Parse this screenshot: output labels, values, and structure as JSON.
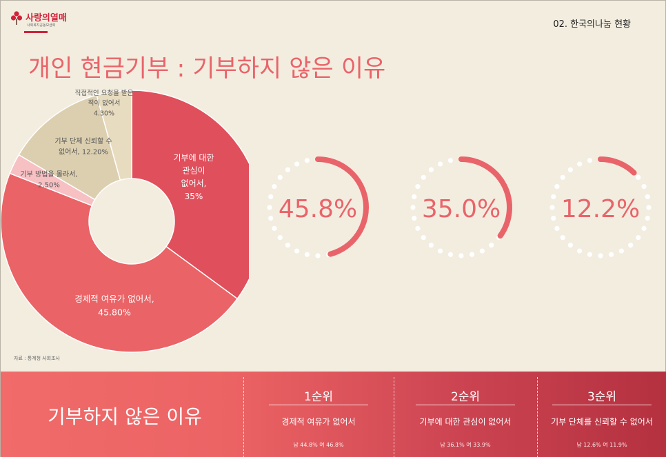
{
  "header": {
    "logo_text": "사랑의열매",
    "logo_sub": "사회복지공동모금회",
    "section_label": "02. 한국의나눔 현황"
  },
  "title": "개인 현금기부 : 기부하지 않은 이유",
  "source": "자료 : 통계청 사회조사",
  "colors": {
    "background": "#f3ede0",
    "accent": "#e9646a",
    "slice_interest": "#e04f5c",
    "slice_economic": "#ea6366",
    "slice_method": "#f7c0c3",
    "slice_trust": "#dccfb0",
    "slice_request": "#e8dcc0"
  },
  "chart_data": [
    {
      "type": "pie",
      "donut": true,
      "title": "",
      "slices": [
        {
          "label_lines": [
            "기부에 대한",
            "관심이",
            "없어서,",
            "35%"
          ],
          "value": 35.0,
          "color": "#e04f5c"
        },
        {
          "label_lines": [
            "경제적 여유가 없어서,",
            "45.80%"
          ],
          "value": 45.8,
          "color": "#ea6366"
        },
        {
          "label_lines": [
            "기부 방법을 몰라서,",
            "2.50%"
          ],
          "value": 2.5,
          "color": "#f7c0c3"
        },
        {
          "label_lines": [
            "기부 단체 신뢰할 수",
            "없어서, 12.20%"
          ],
          "value": 12.2,
          "color": "#dccfb0"
        },
        {
          "label_lines": [
            "직접적인 요청을 받은",
            "적이 없어서",
            "4.30%"
          ],
          "value": 4.3,
          "color": "#e8dcc0"
        }
      ]
    },
    {
      "type": "pie",
      "title": "",
      "progress_rings": [
        {
          "value_text": "45.8%",
          "value": 45.8
        },
        {
          "value_text": "35.0%",
          "value": 35.0
        },
        {
          "value_text": "12.2%",
          "value": 12.2
        }
      ]
    }
  ],
  "band": {
    "title": "기부하지 않은 이유",
    "ranks": [
      {
        "title": "1순위",
        "reason": "경제적 여유가 없어서",
        "stats": "남 44.8% 여 46.8%"
      },
      {
        "title": "2순위",
        "reason": "기부에 대한 관심이 없어서",
        "stats": "남 36.1% 여 33.9%"
      },
      {
        "title": "3순위",
        "reason": "기부 단체를 신뢰할 수 없어서",
        "stats": "남 12.6% 여 11.9%"
      }
    ]
  }
}
